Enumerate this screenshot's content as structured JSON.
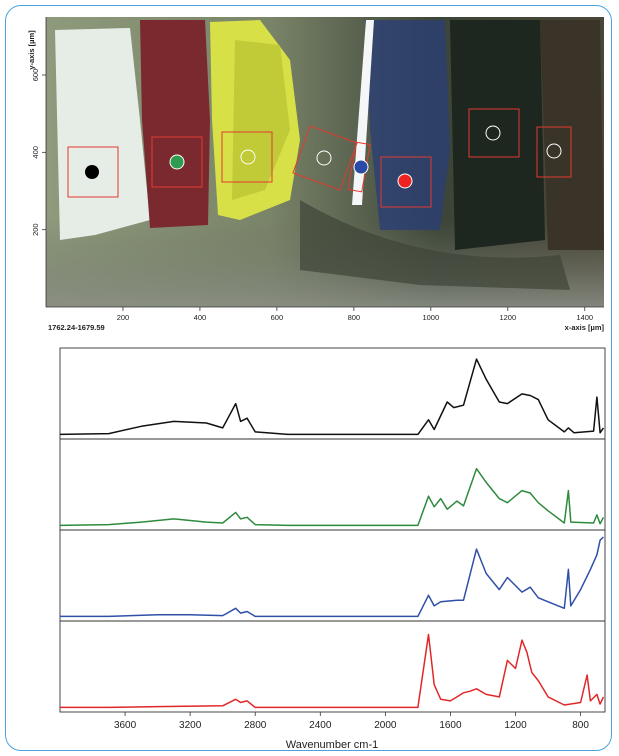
{
  "micrograph": {
    "y_axis_label": "y-axis [µm]",
    "x_axis_label": "x-axis [µm]",
    "coordinate_readout": "1762.24-1679.59",
    "x_ticks": [
      "200",
      "400",
      "600",
      "800",
      "1000",
      "1200",
      "1400"
    ],
    "y_ticks": [
      "600",
      "400",
      "200"
    ],
    "markers": [
      {
        "name": "black-marker",
        "color": "#000000",
        "filled": true
      },
      {
        "name": "green-marker",
        "color": "#2e9b4e",
        "filled": true
      },
      {
        "name": "olive-marker",
        "color": "#ffffff",
        "filled": false
      },
      {
        "name": "slant-marker",
        "color": "#ffffff",
        "filled": false
      },
      {
        "name": "blue-marker",
        "color": "#2a4aa8",
        "filled": true
      },
      {
        "name": "red-marker",
        "color": "#ee2222",
        "filled": true
      },
      {
        "name": "dark-marker",
        "color": "#ffffff",
        "filled": false
      },
      {
        "name": "right-marker",
        "color": "#ffffff",
        "filled": false
      }
    ]
  },
  "chart_data": {
    "type": "line",
    "xlabel": "Wavenumber cm-1",
    "x_reversed": true,
    "xlim": [
      4000,
      650
    ],
    "x_ticks": [
      "3600",
      "3200",
      "2800",
      "2400",
      "2000",
      "1600",
      "1200",
      "800"
    ],
    "series": [
      {
        "color": "#111111",
        "points": [
          [
            4000,
            0.02
          ],
          [
            3700,
            0.03
          ],
          [
            3500,
            0.12
          ],
          [
            3300,
            0.18
          ],
          [
            3100,
            0.16
          ],
          [
            3000,
            0.1
          ],
          [
            2960,
            0.25
          ],
          [
            2920,
            0.4
          ],
          [
            2890,
            0.18
          ],
          [
            2850,
            0.22
          ],
          [
            2800,
            0.05
          ],
          [
            2600,
            0.02
          ],
          [
            1800,
            0.02
          ],
          [
            1735,
            0.2
          ],
          [
            1700,
            0.08
          ],
          [
            1620,
            0.42
          ],
          [
            1580,
            0.35
          ],
          [
            1520,
            0.38
          ],
          [
            1440,
            0.95
          ],
          [
            1380,
            0.7
          ],
          [
            1300,
            0.42
          ],
          [
            1250,
            0.4
          ],
          [
            1160,
            0.52
          ],
          [
            1110,
            0.5
          ],
          [
            1060,
            0.45
          ],
          [
            1000,
            0.2
          ],
          [
            900,
            0.05
          ],
          [
            875,
            0.1
          ],
          [
            840,
            0.04
          ],
          [
            720,
            0.06
          ],
          [
            700,
            0.48
          ],
          [
            680,
            0.04
          ],
          [
            660,
            0.1
          ]
        ]
      },
      {
        "color": "#2e8b3e",
        "points": [
          [
            4000,
            0.02
          ],
          [
            3700,
            0.03
          ],
          [
            3500,
            0.06
          ],
          [
            3300,
            0.1
          ],
          [
            3100,
            0.06
          ],
          [
            3000,
            0.05
          ],
          [
            2920,
            0.18
          ],
          [
            2890,
            0.1
          ],
          [
            2850,
            0.12
          ],
          [
            2800,
            0.03
          ],
          [
            2600,
            0.02
          ],
          [
            1800,
            0.02
          ],
          [
            1735,
            0.38
          ],
          [
            1700,
            0.25
          ],
          [
            1660,
            0.35
          ],
          [
            1620,
            0.22
          ],
          [
            1560,
            0.32
          ],
          [
            1520,
            0.26
          ],
          [
            1440,
            0.72
          ],
          [
            1380,
            0.55
          ],
          [
            1300,
            0.35
          ],
          [
            1250,
            0.3
          ],
          [
            1160,
            0.45
          ],
          [
            1110,
            0.42
          ],
          [
            1060,
            0.3
          ],
          [
            1000,
            0.2
          ],
          [
            900,
            0.05
          ],
          [
            875,
            0.45
          ],
          [
            860,
            0.06
          ],
          [
            720,
            0.05
          ],
          [
            700,
            0.15
          ],
          [
            680,
            0.04
          ],
          [
            660,
            0.12
          ]
        ]
      },
      {
        "color": "#3050a8",
        "points": [
          [
            4000,
            0.02
          ],
          [
            3700,
            0.02
          ],
          [
            3400,
            0.04
          ],
          [
            3200,
            0.04
          ],
          [
            3000,
            0.03
          ],
          [
            2920,
            0.12
          ],
          [
            2890,
            0.06
          ],
          [
            2850,
            0.08
          ],
          [
            2800,
            0.02
          ],
          [
            2600,
            0.02
          ],
          [
            1800,
            0.02
          ],
          [
            1735,
            0.28
          ],
          [
            1700,
            0.15
          ],
          [
            1660,
            0.2
          ],
          [
            1560,
            0.22
          ],
          [
            1520,
            0.22
          ],
          [
            1440,
            0.85
          ],
          [
            1380,
            0.55
          ],
          [
            1300,
            0.35
          ],
          [
            1250,
            0.5
          ],
          [
            1200,
            0.4
          ],
          [
            1160,
            0.32
          ],
          [
            1110,
            0.38
          ],
          [
            1060,
            0.25
          ],
          [
            1000,
            0.2
          ],
          [
            900,
            0.12
          ],
          [
            875,
            0.6
          ],
          [
            860,
            0.15
          ],
          [
            800,
            0.35
          ],
          [
            740,
            0.6
          ],
          [
            700,
            0.78
          ],
          [
            680,
            0.96
          ],
          [
            660,
            1.0
          ]
        ]
      },
      {
        "color": "#e02828",
        "points": [
          [
            4000,
            0.02
          ],
          [
            3700,
            0.02
          ],
          [
            3400,
            0.03
          ],
          [
            3000,
            0.04
          ],
          [
            2920,
            0.12
          ],
          [
            2890,
            0.08
          ],
          [
            2850,
            0.1
          ],
          [
            2800,
            0.02
          ],
          [
            2600,
            0.02
          ],
          [
            1800,
            0.02
          ],
          [
            1735,
            0.92
          ],
          [
            1700,
            0.3
          ],
          [
            1660,
            0.12
          ],
          [
            1600,
            0.1
          ],
          [
            1560,
            0.15
          ],
          [
            1520,
            0.2
          ],
          [
            1480,
            0.22
          ],
          [
            1440,
            0.25
          ],
          [
            1380,
            0.18
          ],
          [
            1300,
            0.15
          ],
          [
            1250,
            0.6
          ],
          [
            1200,
            0.5
          ],
          [
            1160,
            0.85
          ],
          [
            1130,
            0.7
          ],
          [
            1100,
            0.45
          ],
          [
            1060,
            0.35
          ],
          [
            1000,
            0.15
          ],
          [
            900,
            0.05
          ],
          [
            800,
            0.08
          ],
          [
            760,
            0.42
          ],
          [
            740,
            0.1
          ],
          [
            700,
            0.18
          ],
          [
            680,
            0.06
          ],
          [
            660,
            0.15
          ]
        ]
      }
    ]
  }
}
